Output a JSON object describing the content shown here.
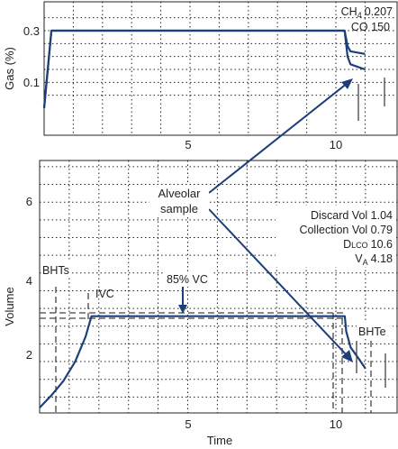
{
  "chart_data": [
    {
      "type": "line",
      "title": "",
      "xlabel": "",
      "ylabel": "Gas (%)",
      "xlim": [
        0,
        11
      ],
      "ylim": [
        0,
        0.38
      ],
      "xticks": [
        "5",
        "10"
      ],
      "yticks": [
        "0.1",
        "0.3"
      ],
      "grid": true,
      "series": [
        {
          "name": "CH4",
          "points": [
            [
              0,
              0
            ],
            [
              0.25,
              0.3
            ],
            [
              10.1,
              0.3
            ],
            [
              10.3,
              0.3
            ],
            [
              10.4,
              0.24
            ],
            [
              10.5,
              0.22
            ],
            [
              11,
              0.21
            ]
          ]
        },
        {
          "name": "CO",
          "points": [
            [
              0,
              0
            ],
            [
              0.25,
              0.3
            ],
            [
              10.1,
              0.3
            ],
            [
              10.3,
              0.3
            ],
            [
              10.4,
              0.2
            ],
            [
              10.5,
              0.17
            ],
            [
              11,
              0.15
            ]
          ]
        }
      ],
      "annotations": {
        "ch4": {
          "base": "CH",
          "sub": "4",
          "value": "0.207"
        },
        "co": "CO 150"
      }
    },
    {
      "type": "line",
      "title": "",
      "xlabel": "Time",
      "ylabel": "Volume",
      "xlim": [
        0,
        11
      ],
      "ylim": [
        0,
        7
      ],
      "xticks": [
        "5",
        "10"
      ],
      "yticks": [
        "2",
        "4",
        "6"
      ],
      "grid": true,
      "series": [
        {
          "points": [
            [
              0,
              0.2
            ],
            [
              0.4,
              0.55
            ],
            [
              0.8,
              0.95
            ],
            [
              1.2,
              1.5
            ],
            [
              1.55,
              2.2
            ],
            [
              1.75,
              2.78
            ],
            [
              10.3,
              2.78
            ],
            [
              10.35,
              2.35
            ],
            [
              10.5,
              1.9
            ],
            [
              10.8,
              1.55
            ],
            [
              11,
              1.3
            ]
          ]
        }
      ],
      "annotations": {
        "alveolar": [
          "Alveolar",
          "sample"
        ],
        "stats": {
          "discard": "Discard Vol 1.04",
          "collection": "Collection Vol 0.79",
          "dlco_main": "D",
          "dlco_sub": "LCO",
          "dlco_value": "10.6",
          "va_main": "V",
          "va_sub": "A",
          "va_value": "4.18"
        },
        "bhts": "BHTs",
        "ivc": "IVC",
        "vc85": "85% VC",
        "bhte": "BHTe"
      }
    }
  ]
}
